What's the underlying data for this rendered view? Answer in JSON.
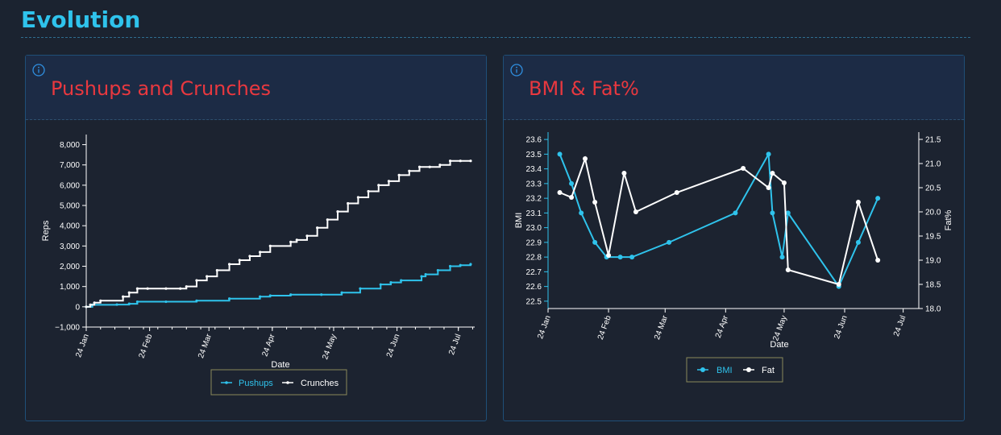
{
  "page": {
    "title": "Evolution"
  },
  "colors": {
    "accent": "#2fc3ec",
    "panel_title": "#e8383f",
    "series_white": "#ffffff",
    "series_blue": "#2fc3ec",
    "legend_border": "#8a8a5a"
  },
  "icons": {
    "info": "info-icon"
  },
  "chart_data": [
    {
      "type": "line",
      "title": "Pushups and Crunches",
      "xlabel": "Date",
      "ylabel": "Reps",
      "x_ticks": [
        "24 Jan",
        "24 Feb",
        "24 Mar",
        "24 Apr",
        "24 May",
        "24 Jun",
        "24 Jul"
      ],
      "x_range": [
        "2024-01-24",
        "2024-08-01"
      ],
      "ylim": [
        -1000,
        8500
      ],
      "y_ticks": [
        -1000,
        0,
        1000,
        2000,
        3000,
        4000,
        5000,
        6000,
        7000,
        8000
      ],
      "y_tick_labels": [
        "−1,000",
        "0",
        "1,000",
        "2,000",
        "3,000",
        "4,000",
        "5,000",
        "6,000",
        "7,000",
        "8,000"
      ],
      "legend": "bottom",
      "series": [
        {
          "name": "Pushups",
          "color": "#2fc3ec",
          "x": [
            "2024-01-24",
            "2024-01-27",
            "2024-02-08",
            "2024-02-14",
            "2024-02-18",
            "2024-03-03",
            "2024-03-18",
            "2024-04-03",
            "2024-04-18",
            "2024-04-23",
            "2024-05-03",
            "2024-05-18",
            "2024-05-28",
            "2024-06-06",
            "2024-06-16",
            "2024-06-21",
            "2024-06-26",
            "2024-07-06",
            "2024-07-08",
            "2024-07-14",
            "2024-07-20",
            "2024-07-25",
            "2024-07-30"
          ],
          "y": [
            0,
            100,
            110,
            150,
            250,
            250,
            300,
            400,
            500,
            550,
            600,
            600,
            700,
            900,
            1100,
            1200,
            1300,
            1500,
            1600,
            1800,
            2000,
            2050,
            2100
          ]
        },
        {
          "name": "Crunches",
          "color": "#ffffff",
          "x": [
            "2024-01-24",
            "2024-01-26",
            "2024-01-28",
            "2024-01-31",
            "2024-02-11",
            "2024-02-14",
            "2024-02-18",
            "2024-02-23",
            "2024-03-03",
            "2024-03-10",
            "2024-03-13",
            "2024-03-18",
            "2024-03-23",
            "2024-03-28",
            "2024-04-03",
            "2024-04-08",
            "2024-04-13",
            "2024-04-18",
            "2024-04-23",
            "2024-05-03",
            "2024-05-06",
            "2024-05-11",
            "2024-05-16",
            "2024-05-21",
            "2024-05-26",
            "2024-05-31",
            "2024-06-05",
            "2024-06-10",
            "2024-06-15",
            "2024-06-20",
            "2024-06-25",
            "2024-06-30",
            "2024-07-05",
            "2024-07-10",
            "2024-07-15",
            "2024-07-20",
            "2024-07-25",
            "2024-07-30"
          ],
          "y": [
            0,
            100,
            200,
            300,
            500,
            700,
            900,
            900,
            900,
            900,
            1000,
            1300,
            1500,
            1800,
            2100,
            2300,
            2500,
            2700,
            3000,
            3200,
            3300,
            3500,
            3900,
            4300,
            4700,
            5100,
            5400,
            5700,
            6000,
            6200,
            6500,
            6700,
            6900,
            6900,
            7000,
            7200,
            7200,
            7200
          ]
        }
      ]
    },
    {
      "type": "line",
      "title": "BMI & Fat%",
      "xlabel": "Date",
      "ylabel": "BMI",
      "y2label": "Fat%",
      "x_ticks": [
        "24 Jan",
        "24 Feb",
        "24 Mar",
        "24 Apr",
        "24 May",
        "24 Jun",
        "24 Jul"
      ],
      "x_range": [
        "2024-01-24",
        "2024-08-01"
      ],
      "ylim": [
        22.45,
        23.65
      ],
      "y_ticks": [
        22.5,
        22.6,
        22.7,
        22.8,
        22.9,
        23.0,
        23.1,
        23.2,
        23.3,
        23.4,
        23.5,
        23.6
      ],
      "y2lim": [
        18.0,
        21.65
      ],
      "y2_ticks": [
        18.0,
        18.5,
        19.0,
        19.5,
        20.0,
        20.5,
        21.0,
        21.5
      ],
      "legend": "bottom",
      "series": [
        {
          "name": "BMI",
          "color": "#2fc3ec",
          "axis": "left",
          "x": [
            "2024-01-30",
            "2024-02-05",
            "2024-02-10",
            "2024-02-17",
            "2024-02-23",
            "2024-03-01",
            "2024-03-07",
            "2024-03-26",
            "2024-04-29",
            "2024-05-16",
            "2024-05-18",
            "2024-05-23",
            "2024-05-26",
            "2024-06-21",
            "2024-07-01",
            "2024-07-11"
          ],
          "y": [
            23.5,
            23.3,
            23.1,
            22.9,
            22.8,
            22.8,
            22.8,
            22.9,
            23.1,
            23.5,
            23.1,
            22.8,
            23.1,
            22.6,
            22.9,
            23.2
          ]
        },
        {
          "name": "Fat",
          "color": "#ffffff",
          "axis": "right",
          "x": [
            "2024-01-30",
            "2024-02-05",
            "2024-02-12",
            "2024-02-17",
            "2024-02-24",
            "2024-03-03",
            "2024-03-09",
            "2024-03-30",
            "2024-05-03",
            "2024-05-16",
            "2024-05-18",
            "2024-05-24",
            "2024-05-26",
            "2024-06-21",
            "2024-07-01",
            "2024-07-11"
          ],
          "y": [
            20.4,
            20.3,
            21.1,
            20.2,
            19.1,
            20.8,
            20.0,
            20.4,
            20.9,
            20.5,
            20.8,
            20.6,
            18.8,
            18.5,
            20.2,
            19.0
          ]
        }
      ]
    }
  ]
}
